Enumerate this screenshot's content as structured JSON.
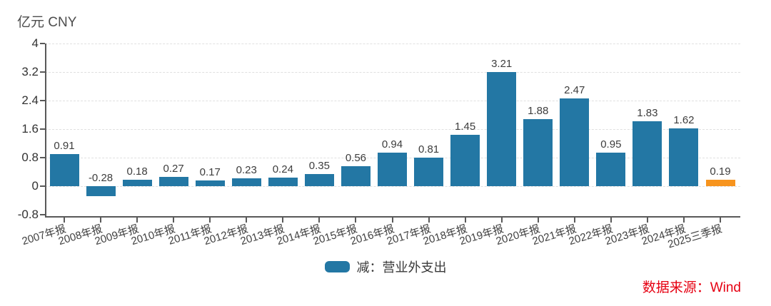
{
  "chart_data": {
    "type": "bar",
    "title": "",
    "unit_label": "亿元 CNY",
    "categories": [
      "2007年报",
      "2008年报",
      "2009年报",
      "2010年报",
      "2011年报",
      "2012年报",
      "2013年报",
      "2014年报",
      "2015年报",
      "2016年报",
      "2017年报",
      "2018年报",
      "2019年报",
      "2020年报",
      "2021年报",
      "2022年报",
      "2023年报",
      "2024年报",
      "2025三季报"
    ],
    "values": [
      0.91,
      -0.28,
      0.18,
      0.27,
      0.17,
      0.23,
      0.24,
      0.35,
      0.56,
      0.94,
      0.81,
      1.45,
      3.21,
      1.88,
      2.47,
      0.95,
      1.83,
      1.62,
      0.19
    ],
    "highlight_index": 18,
    "y_ticks": [
      4,
      3.2,
      2.4,
      1.6,
      0.8,
      0,
      -0.8
    ],
    "ylim": [
      -0.8,
      4
    ],
    "grid": "horizontal-dashed",
    "legend": {
      "label": "减：营业外支出",
      "swatch_color": "#2377a4",
      "position": "bottom-center"
    },
    "source_note": "数据来源：Wind",
    "colors": {
      "bar": "#2377a4",
      "bar_highlight": "#f7941e",
      "gridline": "#e0e0e0",
      "axis": "#595959",
      "source_text": "#e60012"
    }
  }
}
